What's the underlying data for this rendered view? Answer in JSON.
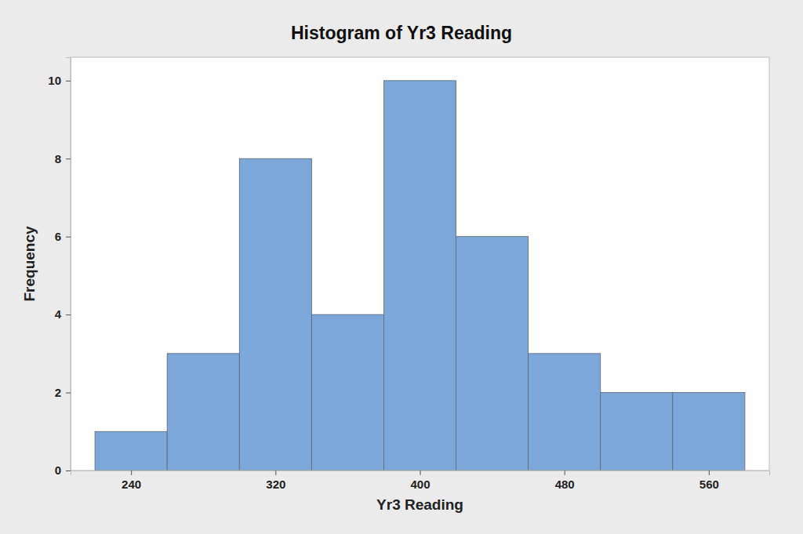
{
  "chart_data": {
    "type": "histogram",
    "title": "Histogram of Yr3 Reading",
    "x_label": "Yr3 Reading",
    "y_label": "Frequency",
    "bins": [
      220,
      260,
      300,
      340,
      380,
      420,
      460,
      500,
      540,
      580
    ],
    "values": [
      1,
      3,
      8,
      4,
      10,
      6,
      3,
      2,
      2
    ],
    "color": "#7ba7d9",
    "xlim": [
      206.5,
      593.5
    ],
    "xticks": [
      240,
      320,
      400,
      480,
      560
    ],
    "ylim": [
      0,
      10.6
    ],
    "yticks": [
      0,
      2,
      4,
      6,
      8,
      10
    ]
  }
}
